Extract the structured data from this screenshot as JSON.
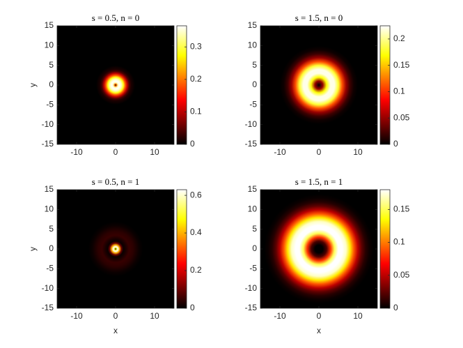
{
  "chart_data": [
    {
      "type": "heatmap",
      "title": "s = 0.5, n = 0",
      "ylabel": "y",
      "colormap": "hot",
      "xlim": [
        -15,
        15
      ],
      "xticks": [
        -10,
        0,
        10
      ],
      "ylim": [
        -15,
        15
      ],
      "yticks": [
        -15,
        -10,
        -5,
        0,
        5,
        10,
        15
      ],
      "clim": [
        0,
        0.365
      ],
      "cticks": [
        0,
        0.1,
        0.2,
        0.3
      ],
      "radial_profile": {
        "r": [
          0,
          0.3,
          0.6,
          1,
          1.5,
          2,
          2.5,
          3,
          3.5,
          4,
          5
        ],
        "values": [
          0,
          0.2,
          0.34,
          0.365,
          0.34,
          0.28,
          0.18,
          0.1,
          0.04,
          0.015,
          0
        ]
      }
    },
    {
      "type": "heatmap",
      "title": "s = 1.5, n = 0",
      "colormap": "hot",
      "xlim": [
        -15,
        15
      ],
      "xticks": [
        -10,
        0,
        10
      ],
      "ylim": [
        -15,
        15
      ],
      "yticks": [
        -15,
        -10,
        -5,
        0,
        5,
        10,
        15
      ],
      "clim": [
        0,
        0.225
      ],
      "cticks": [
        0,
        0.05,
        0.1,
        0.15,
        0.2
      ],
      "radial_profile": {
        "r": [
          0,
          1,
          2,
          3,
          4,
          5,
          6,
          7,
          8,
          9,
          10
        ],
        "values": [
          0,
          0.05,
          0.17,
          0.22,
          0.22,
          0.18,
          0.11,
          0.05,
          0.02,
          0.005,
          0
        ]
      }
    },
    {
      "type": "heatmap",
      "title": "s = 0.5, n = 1",
      "xlabel": "x",
      "ylabel": "y",
      "colormap": "hot",
      "xlim": [
        -15,
        15
      ],
      "xticks": [
        -10,
        0,
        10
      ],
      "ylim": [
        -15,
        15
      ],
      "yticks": [
        -15,
        -10,
        -5,
        0,
        5,
        10,
        15
      ],
      "clim": [
        0,
        0.63
      ],
      "cticks": [
        0,
        0.2,
        0.4,
        0.6
      ],
      "radial_profile": {
        "r": [
          0,
          0.3,
          0.6,
          1,
          1.5,
          2,
          2.5,
          3.5,
          4.5,
          6,
          7
        ],
        "values": [
          0,
          0.5,
          0.63,
          0.4,
          0.1,
          0.01,
          0.02,
          0.05,
          0.04,
          0.01,
          0
        ]
      }
    },
    {
      "type": "heatmap",
      "title": "s = 1.5, n = 1",
      "xlabel": "x",
      "colormap": "hot",
      "xlim": [
        -15,
        15
      ],
      "xticks": [
        -10,
        0,
        10
      ],
      "ylim": [
        -15,
        15
      ],
      "yticks": [
        -15,
        -10,
        -5,
        0,
        5,
        10,
        15
      ],
      "clim": [
        0,
        0.18
      ],
      "cticks": [
        0,
        0.05,
        0.1,
        0.15
      ],
      "radial_profile": {
        "r": [
          0,
          1,
          2,
          3,
          4,
          5,
          6,
          7,
          8,
          9,
          10,
          11,
          12,
          13,
          14
        ],
        "values": [
          0,
          0,
          0.02,
          0.08,
          0.15,
          0.18,
          0.18,
          0.17,
          0.13,
          0.09,
          0.05,
          0.025,
          0.01,
          0.003,
          0
        ]
      }
    }
  ]
}
